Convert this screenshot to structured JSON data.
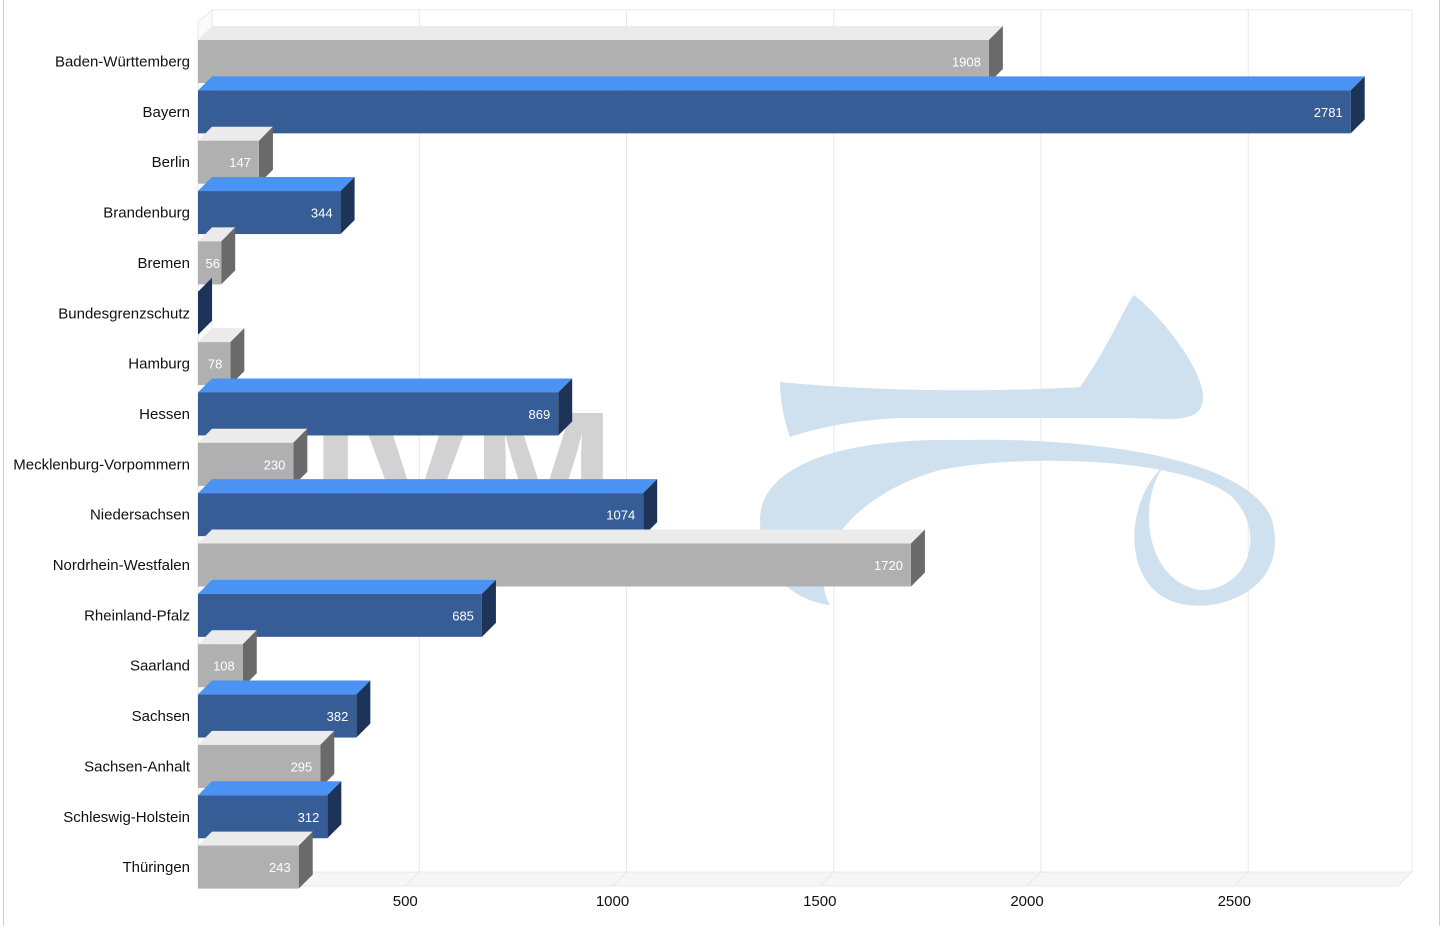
{
  "chart_data": {
    "type": "bar",
    "orientation": "horizontal",
    "style": "3d",
    "categories": [
      "Baden-Württemberg",
      "Bayern",
      "Berlin",
      "Brandenburg",
      "Bremen",
      "Bundesgrenzschutz",
      "Hamburg",
      "Hessen",
      "Mecklenburg-Vorpommern",
      "Niedersachsen",
      "Nordrhein-Westfalen",
      "Rheinland-Pfalz",
      "Saarland",
      "Sachsen",
      "Sachsen-Anhalt",
      "Schleswig-Holstein",
      "Thüringen"
    ],
    "values": [
      1908,
      2781,
      147,
      344,
      56,
      0,
      78,
      869,
      230,
      1074,
      1720,
      685,
      108,
      382,
      295,
      312,
      243
    ],
    "value_labels": [
      "1908",
      "2781",
      "147",
      "344",
      "56",
      "",
      "78",
      "869",
      "230",
      "1074",
      "1720",
      "685",
      "108",
      "382",
      "295",
      "312",
      "243"
    ],
    "xlim": [
      0,
      2900
    ],
    "xticks": [
      500,
      1000,
      1500,
      2000,
      2500
    ],
    "xtick_labels": [
      "500",
      "1000",
      "1500",
      "2000",
      "2500"
    ],
    "grid": true,
    "legend": "none",
    "colors": {
      "grey_front": "#b0b0b0",
      "grey_top": "#ebebeb",
      "grey_side": "#6a6a6a",
      "blue_front": "#365d96",
      "blue_top": "#4a93f2",
      "blue_side": "#1d3358",
      "grid": "#e8e8e8",
      "watermark_grey": "#d2d2d2",
      "watermark_blue": "#cfe1ef"
    }
  }
}
